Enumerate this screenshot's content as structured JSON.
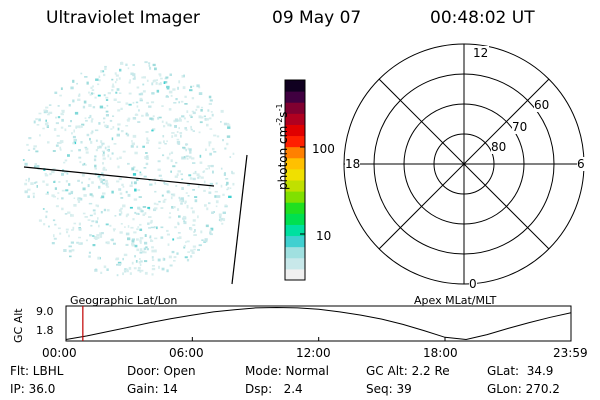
{
  "header": {
    "title": "Ultraviolet Imager",
    "date": "09 May 07",
    "time": "00:48:02 UT"
  },
  "colorbar": {
    "label": "photon cm^-2 s^-1",
    "label_main": "photon cm",
    "label_exp1": "-2",
    "label_s": "s",
    "label_exp2": "-1",
    "ticks": [
      "100",
      "10"
    ],
    "scale": "log",
    "colors": [
      "#f0f0f0",
      "#c8e8ea",
      "#a0e0e0",
      "#40d0d0",
      "#00e0a0",
      "#00e050",
      "#20e020",
      "#80e000",
      "#c0e000",
      "#f0e000",
      "#ffc000",
      "#ff8000",
      "#ff2000",
      "#e00000",
      "#b00020",
      "#800030",
      "#400040",
      "#100020"
    ]
  },
  "polar": {
    "hour_labels": {
      "top": "12",
      "left": "18",
      "right": "6",
      "bottom": "0"
    },
    "ring_labels": [
      "80",
      "70",
      "60"
    ]
  },
  "timeline": {
    "y_axis_label": "GC Alt",
    "y_ticks": [
      "9.0",
      "1.8"
    ],
    "left_label": "Geographic Lat/Lon",
    "right_label": "Apex MLat/MLT",
    "x_ticks": [
      "00:00",
      "06:00",
      "12:00",
      "18:00",
      "23:59"
    ],
    "marker_time": "00:48",
    "marker_color": "#c00000"
  },
  "info": {
    "flt": "Flt: LBHL",
    "ip": "IP: 36.0",
    "door": "Door: Open",
    "gain": "Gain: 14",
    "mode": "Mode: Normal",
    "dsp": "Dsp:   2.4",
    "gcalt": "GC Alt: 2.2 Re",
    "seq": "Seq: 39",
    "glat": "GLat:  34.9",
    "glon": "GLon: 270.2"
  },
  "chart_data": {
    "type": "line",
    "title": "",
    "xlabel": "",
    "ylabel": "GC Alt",
    "x": [
      "00:00",
      "01:00",
      "02:00",
      "03:00",
      "04:00",
      "05:00",
      "06:00",
      "07:00",
      "08:00",
      "09:00",
      "10:00",
      "11:00",
      "12:00",
      "13:00",
      "14:00",
      "15:00",
      "16:00",
      "17:00",
      "18:00",
      "19:00",
      "20:00",
      "21:00",
      "22:00",
      "23:00",
      "23:59"
    ],
    "series": [
      {
        "values": [
          1.8,
          2.6,
          3.6,
          4.6,
          5.6,
          6.5,
          7.3,
          8.0,
          8.5,
          8.9,
          9.0,
          8.9,
          8.6,
          8.0,
          7.3,
          6.4,
          5.2,
          3.8,
          2.3,
          1.8,
          2.9,
          4.3,
          5.6,
          6.8,
          7.8
        ]
      }
    ],
    "ylim": [
      1.8,
      9.0
    ],
    "xlim": [
      "00:00",
      "23:59"
    ],
    "marker_x": "00:48",
    "grid": false
  }
}
